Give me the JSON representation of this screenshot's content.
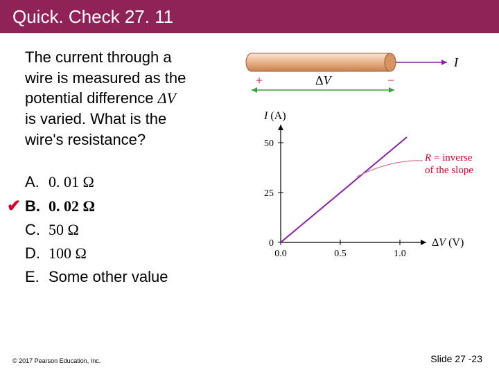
{
  "title": "Quick. Check 27. 11",
  "question": {
    "line1": "The current through a",
    "line2": "wire is measured as the",
    "line3": "potential difference ",
    "dv": "ΔV",
    "line4": "is varied. What is the",
    "line5": "wire's resistance?"
  },
  "answers": [
    {
      "letter": "A.",
      "text": "0. 01 Ω",
      "bold": false,
      "correct": false
    },
    {
      "letter": "B.",
      "text": "0. 02 Ω",
      "bold": true,
      "correct": true
    },
    {
      "letter": "C.",
      "text": "50 Ω",
      "bold": false,
      "correct": false
    },
    {
      "letter": "D.",
      "text": "100 Ω",
      "bold": false,
      "correct": false
    },
    {
      "letter": "E.",
      "text": "Some other value",
      "bold": false,
      "correct": false,
      "plain": true
    }
  ],
  "footer_left": "© 2017 Pearson Education, Inc.",
  "footer_right": "Slide 27 -23",
  "diagram": {
    "wire": {
      "fill_top": "#f9e0cf",
      "fill_mid": "#e7a877",
      "fill_bot": "#c97a4a",
      "outline": "#9b5a33",
      "plus": "+",
      "minus": "−",
      "dv": "ΔV",
      "I": "I"
    },
    "chart": {
      "type": "line",
      "y_label": "I (A)",
      "x_label": "ΔV (V)",
      "x_ticks": [
        "0.0",
        "0.5",
        "1.0"
      ],
      "y_ticks": [
        "0",
        "25",
        "50"
      ],
      "xlim": [
        0,
        1.1
      ],
      "ylim": [
        0,
        55
      ],
      "line_points": [
        [
          0,
          0
        ],
        [
          1.0,
          50
        ]
      ],
      "line_color": "#8a1fa3",
      "annotation": {
        "text1": "R = inverse",
        "text2": "of the slope",
        "color": "#d4002a"
      },
      "background": "#ffffff",
      "axis_color": "#000000"
    }
  }
}
